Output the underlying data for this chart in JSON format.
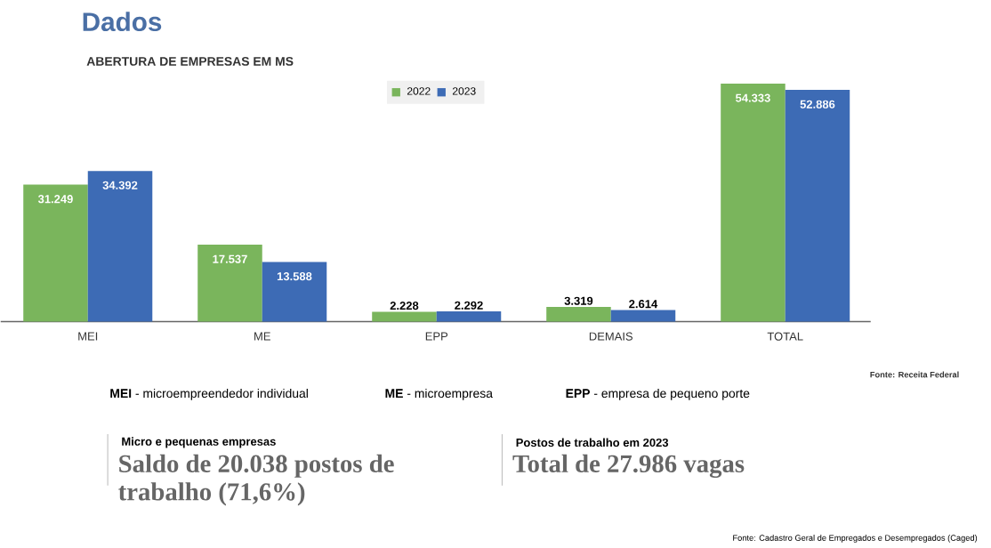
{
  "chart_data": {
    "type": "bar",
    "title": "Dados",
    "subtitle": "ABERTURA DE EMPRESAS EM MS",
    "categories": [
      "MEI",
      "ME",
      "EPP",
      "DEMAIS",
      "TOTAL"
    ],
    "series": [
      {
        "name": "2022",
        "color": "#7ab55c",
        "values": [
          31249,
          17537,
          2228,
          3319,
          54333
        ],
        "value_labels": [
          "31.249",
          "17.537",
          "2.228",
          "3.319",
          "54.333"
        ]
      },
      {
        "name": "2023",
        "color": "#3d6bb5",
        "values": [
          34392,
          13588,
          2292,
          2614,
          52886
        ],
        "value_labels": [
          "34.392",
          "13.588",
          "2.292",
          "2.614",
          "52.886"
        ]
      }
    ],
    "legend": "top",
    "annotations": [
      "Fonte: Receita Federal",
      "**MEI** - microempreendedor individual",
      "**ME** - microempresa",
      "**EPP** - empresa de pequeno porte",
      "Micro e pequenas empresas",
      "Saldo de 20.038 postos de trabalho (71,6%)",
      "Postos de trabalho em 2023",
      "Total de 27.986 vagas",
      "Fonte: Cadastro Geral de Empregados e Desempregados (Caged)"
    ]
  }
}
